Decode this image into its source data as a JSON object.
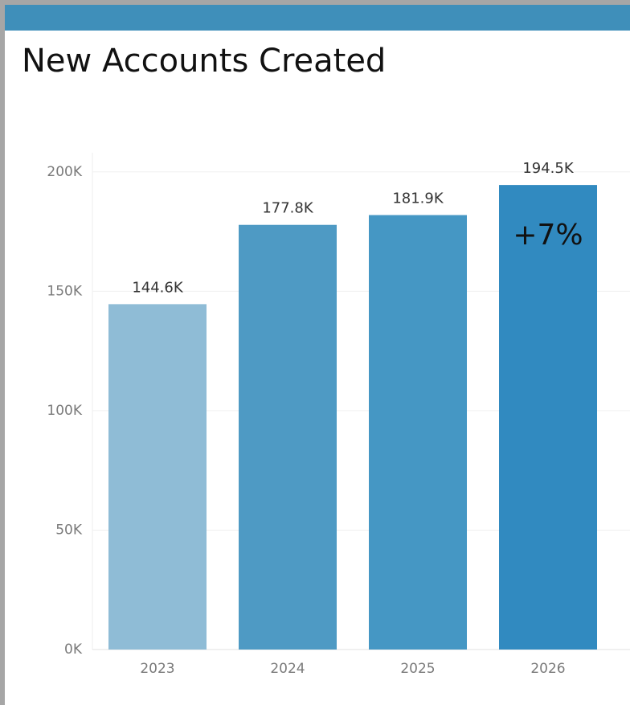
{
  "chart_data": {
    "type": "bar",
    "title": "New Accounts Created",
    "categories": [
      "2023",
      "2024",
      "2025",
      "2026"
    ],
    "values": [
      144600,
      177800,
      181900,
      194500
    ],
    "value_labels": [
      "144.6K",
      "177.8K",
      "181.9K",
      "194.5K"
    ],
    "colors": [
      "#8fbcd6",
      "#4e9ac4",
      "#4597c4",
      "#318ac0"
    ],
    "annotation": "+7%",
    "ylim": [
      0,
      208000
    ],
    "yticks": [
      {
        "value": 0,
        "label": "0K"
      },
      {
        "value": 50000,
        "label": "50K"
      },
      {
        "value": 100000,
        "label": "100K"
      },
      {
        "value": 150000,
        "label": "150K"
      },
      {
        "value": 200000,
        "label": "200K"
      }
    ],
    "grid": true
  }
}
